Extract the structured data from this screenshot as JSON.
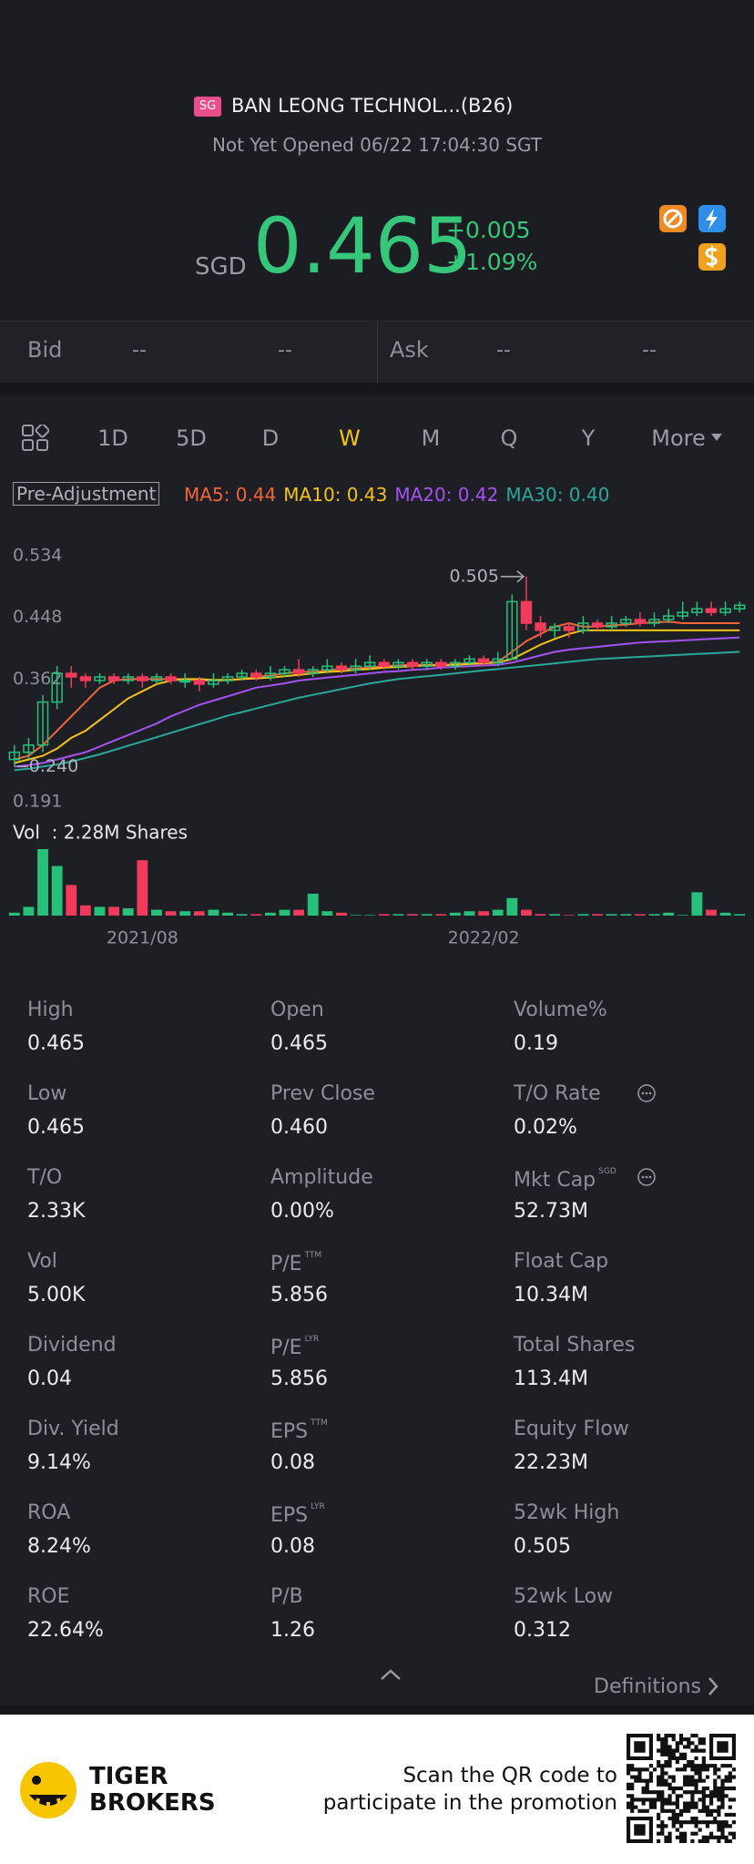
{
  "header": {
    "market_badge": "SG",
    "name": "BAN LEONG TECHNOL...(B26)",
    "status": "Not Yet Opened 06/22 17:04:30 SGT",
    "currency": "SGD",
    "price": "0.465",
    "change": "+0.005",
    "change_pct": "+1.09%"
  },
  "quote": {
    "bid_label": "Bid",
    "bid_price": "--",
    "bid_size": "--",
    "ask_label": "Ask",
    "ask_price": "--",
    "ask_size": "--"
  },
  "tabs": [
    "1D",
    "5D",
    "D",
    "W",
    "M",
    "Q",
    "Y",
    "More"
  ],
  "active_tab": 3,
  "adjustment": "Pre-Adjustment",
  "chart_data": {
    "type": "candlestick",
    "ylim": [
      0.191,
      0.534
    ],
    "yticks": [
      0.534,
      0.448,
      0.362,
      0.191
    ],
    "categories": [
      null,
      null,
      null,
      null,
      null,
      null,
      null,
      null,
      null,
      "2021/08",
      null,
      null,
      null,
      null,
      null,
      null,
      null,
      null,
      null,
      null,
      null,
      null,
      null,
      null,
      null,
      null,
      null,
      null,
      null,
      null,
      null,
      null,
      null,
      "2022/02",
      null,
      null,
      null,
      null,
      null,
      null,
      null,
      null,
      null,
      null,
      null,
      null,
      null,
      null,
      null,
      null,
      null,
      null
    ],
    "open": [
      0.25,
      0.26,
      0.27,
      0.33,
      0.37,
      0.365,
      0.36,
      0.365,
      0.36,
      0.365,
      0.36,
      0.365,
      0.36,
      0.36,
      0.355,
      0.36,
      0.365,
      0.37,
      0.365,
      0.37,
      0.375,
      0.37,
      0.375,
      0.38,
      0.375,
      0.38,
      0.385,
      0.38,
      0.385,
      0.38,
      0.385,
      0.38,
      0.385,
      0.39,
      0.385,
      0.39,
      0.47,
      0.44,
      0.43,
      0.435,
      0.43,
      0.44,
      0.435,
      0.44,
      0.445,
      0.44,
      0.445,
      0.45,
      0.455,
      0.46,
      0.455,
      0.46
    ],
    "close": [
      0.26,
      0.27,
      0.33,
      0.37,
      0.365,
      0.36,
      0.365,
      0.36,
      0.365,
      0.36,
      0.365,
      0.36,
      0.36,
      0.355,
      0.36,
      0.365,
      0.37,
      0.365,
      0.37,
      0.375,
      0.37,
      0.375,
      0.38,
      0.375,
      0.38,
      0.385,
      0.38,
      0.385,
      0.38,
      0.385,
      0.38,
      0.385,
      0.39,
      0.385,
      0.39,
      0.47,
      0.44,
      0.43,
      0.435,
      0.43,
      0.44,
      0.435,
      0.44,
      0.445,
      0.44,
      0.445,
      0.45,
      0.455,
      0.46,
      0.455,
      0.46,
      0.465
    ],
    "high": [
      0.27,
      0.28,
      0.34,
      0.38,
      0.38,
      0.37,
      0.37,
      0.37,
      0.37,
      0.37,
      0.37,
      0.37,
      0.37,
      0.365,
      0.37,
      0.37,
      0.375,
      0.375,
      0.38,
      0.38,
      0.39,
      0.38,
      0.39,
      0.385,
      0.39,
      0.395,
      0.39,
      0.39,
      0.39,
      0.39,
      0.39,
      0.39,
      0.395,
      0.395,
      0.4,
      0.48,
      0.505,
      0.45,
      0.44,
      0.44,
      0.45,
      0.445,
      0.45,
      0.45,
      0.455,
      0.455,
      0.46,
      0.47,
      0.47,
      0.47,
      0.47,
      0.47
    ],
    "low": [
      0.24,
      0.25,
      0.26,
      0.32,
      0.35,
      0.35,
      0.355,
      0.355,
      0.355,
      0.35,
      0.355,
      0.355,
      0.35,
      0.345,
      0.35,
      0.355,
      0.36,
      0.36,
      0.36,
      0.365,
      0.365,
      0.365,
      0.37,
      0.37,
      0.37,
      0.375,
      0.375,
      0.375,
      0.375,
      0.375,
      0.375,
      0.375,
      0.38,
      0.38,
      0.38,
      0.39,
      0.43,
      0.42,
      0.42,
      0.42,
      0.425,
      0.43,
      0.43,
      0.435,
      0.435,
      0.435,
      0.44,
      0.445,
      0.45,
      0.45,
      0.45,
      0.455
    ],
    "up_color": "#27c07a",
    "down_color": "#f23b5a",
    "annotations": [
      {
        "text": "0.505",
        "value": 0.505
      },
      {
        "text": "0.240",
        "value": 0.24
      }
    ],
    "series": [
      {
        "name": "MA5: 0.44",
        "color": "#f2643a",
        "values": [
          0.25,
          0.255,
          0.27,
          0.29,
          0.31,
          0.33,
          0.35,
          0.36,
          0.362,
          0.362,
          0.362,
          0.362,
          0.362,
          0.36,
          0.36,
          0.36,
          0.362,
          0.365,
          0.367,
          0.37,
          0.372,
          0.372,
          0.374,
          0.376,
          0.377,
          0.378,
          0.38,
          0.381,
          0.382,
          0.382,
          0.382,
          0.383,
          0.384,
          0.385,
          0.386,
          0.4,
          0.415,
          0.425,
          0.435,
          0.44,
          0.435,
          0.435,
          0.437,
          0.438,
          0.44,
          0.441,
          0.442,
          0.44,
          0.44,
          0.44,
          0.44,
          0.44
        ]
      },
      {
        "name": "MA10: 0.43",
        "color": "#f5c21b",
        "values": [
          0.245,
          0.25,
          0.255,
          0.265,
          0.28,
          0.29,
          0.305,
          0.32,
          0.335,
          0.345,
          0.355,
          0.36,
          0.362,
          0.362,
          0.361,
          0.361,
          0.362,
          0.363,
          0.364,
          0.366,
          0.368,
          0.37,
          0.372,
          0.373,
          0.375,
          0.376,
          0.378,
          0.379,
          0.38,
          0.381,
          0.381,
          0.382,
          0.383,
          0.384,
          0.385,
          0.39,
          0.4,
          0.41,
          0.418,
          0.425,
          0.43,
          0.43,
          0.43,
          0.43,
          0.43,
          0.43,
          0.43,
          0.43,
          0.43,
          0.43,
          0.43,
          0.43
        ]
      },
      {
        "name": "MA20: 0.42",
        "color": "#a552f0",
        "values": [
          0.24,
          0.242,
          0.245,
          0.25,
          0.255,
          0.26,
          0.268,
          0.276,
          0.284,
          0.292,
          0.3,
          0.31,
          0.318,
          0.326,
          0.332,
          0.338,
          0.344,
          0.35,
          0.353,
          0.356,
          0.36,
          0.362,
          0.364,
          0.366,
          0.368,
          0.37,
          0.372,
          0.373,
          0.375,
          0.376,
          0.378,
          0.379,
          0.38,
          0.381,
          0.382,
          0.385,
          0.39,
          0.395,
          0.4,
          0.403,
          0.405,
          0.407,
          0.409,
          0.411,
          0.413,
          0.414,
          0.415,
          0.416,
          0.417,
          0.418,
          0.419,
          0.42
        ]
      },
      {
        "name": "MA30: 0.40",
        "color": "#2aa89a",
        "values": [
          0.235,
          0.237,
          0.24,
          0.243,
          0.247,
          0.252,
          0.257,
          0.263,
          0.269,
          0.275,
          0.281,
          0.287,
          0.293,
          0.299,
          0.305,
          0.311,
          0.316,
          0.321,
          0.326,
          0.331,
          0.336,
          0.34,
          0.344,
          0.348,
          0.352,
          0.356,
          0.359,
          0.362,
          0.364,
          0.366,
          0.368,
          0.37,
          0.372,
          0.374,
          0.376,
          0.378,
          0.38,
          0.382,
          0.384,
          0.386,
          0.388,
          0.39,
          0.391,
          0.392,
          0.393,
          0.394,
          0.395,
          0.396,
          0.397,
          0.398,
          0.399,
          0.4
        ]
      }
    ],
    "volume_label": "Vol  : 2.28M Shares",
    "volume_lim": [
      0,
      2.28
    ],
    "volume": [
      0.1,
      0.3,
      2.28,
      1.7,
      1.05,
      0.35,
      0.3,
      0.3,
      0.25,
      1.9,
      0.2,
      0.15,
      0.15,
      0.15,
      0.2,
      0.1,
      0.05,
      0.05,
      0.1,
      0.2,
      0.2,
      0.75,
      0.15,
      0.1,
      0.02,
      0.02,
      0.05,
      0.05,
      0.05,
      0.05,
      0.05,
      0.1,
      0.15,
      0.15,
      0.2,
      0.6,
      0.2,
      0.05,
      0.05,
      0.02,
      0.05,
      0.05,
      0.05,
      0.05,
      0.05,
      0.05,
      0.1,
      0.02,
      0.8,
      0.2,
      0.1,
      0.05
    ]
  },
  "stats": [
    {
      "label": "High",
      "value": "0.465"
    },
    {
      "label": "Open",
      "value": "0.465"
    },
    {
      "label": "Volume%",
      "value": "0.19"
    },
    {
      "label": "Low",
      "value": "0.465"
    },
    {
      "label": "Prev Close",
      "value": "0.460"
    },
    {
      "label": "T/O Rate",
      "value": "0.02%",
      "icon": true
    },
    {
      "label": "T/O",
      "value": "2.33K"
    },
    {
      "label": "Amplitude",
      "value": "0.00%"
    },
    {
      "label": "Mkt Cap",
      "sup": "SGD",
      "value": "52.73M",
      "icon": true
    },
    {
      "label": "Vol",
      "value": "5.00K"
    },
    {
      "label": "P/E",
      "sup": "TTM",
      "value": "5.856"
    },
    {
      "label": "Float Cap",
      "value": "10.34M"
    },
    {
      "label": "Dividend",
      "value": "0.04"
    },
    {
      "label": "P/E",
      "sup": "LYR",
      "value": "5.856"
    },
    {
      "label": "Total Shares",
      "value": "113.4M"
    },
    {
      "label": "Div. Yield",
      "value": "9.14%"
    },
    {
      "label": "EPS",
      "sup": "TTM",
      "value": "0.08"
    },
    {
      "label": "Equity Flow",
      "value": "22.23M"
    },
    {
      "label": "ROA",
      "value": "8.24%"
    },
    {
      "label": "EPS",
      "sup": "LYR",
      "value": "0.08"
    },
    {
      "label": "52wk High",
      "value": "0.505"
    },
    {
      "label": "ROE",
      "value": "22.64%"
    },
    {
      "label": "P/B",
      "value": "1.26"
    },
    {
      "label": "52wk Low",
      "value": "0.312"
    }
  ],
  "definitions": "Definitions",
  "footer": {
    "brand_top": "TIGER",
    "brand_bottom": "BROKERS",
    "promo_line1": "Scan the QR code to",
    "promo_line2": "participate in the promotion"
  }
}
